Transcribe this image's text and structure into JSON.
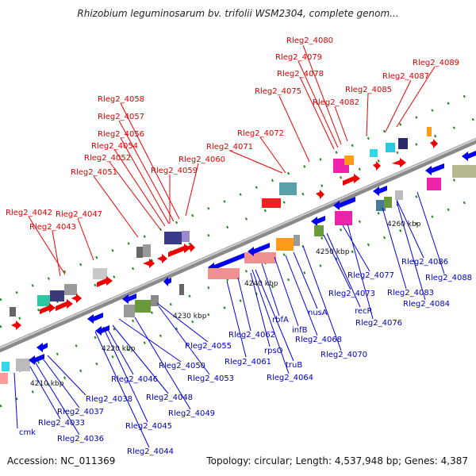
{
  "title": "Rhizobium leguminosarum bv. trifolii WSM2304, complete genom...",
  "accession": "Accession: NC_011369",
  "summary": "Topology: circular; Length: 4,537,948 bp; Genes: 4,387",
  "colors": {
    "top_label": "#dd0000",
    "bottom_label": "#0000bb",
    "backbone": "#8a8a8a"
  },
  "ticks": [
    "4210 kbp",
    "4220 kbp",
    "4230 kbp",
    "4240 kbp",
    "4250 kbp",
    "4260 kbp"
  ],
  "top_labels": [
    "Rleg2_4080",
    "Rleg2_4079",
    "Rleg2_4078",
    "Rleg2_4089",
    "Rleg2_4087",
    "Rleg2_4085",
    "Rleg2_4082",
    "Rleg2_4075",
    "Rleg2_4058",
    "Rleg2_4057",
    "Rleg2_4056",
    "Rleg2_4072",
    "Rleg2_4054",
    "Rleg2_4071",
    "Rleg2_4052",
    "Rleg2_4060",
    "Rleg2_4059",
    "Rleg2_4051",
    "Rleg2_4042",
    "Rleg2_4047",
    "Rleg2_4043"
  ],
  "bottom_labels": [
    "Rleg2_4086",
    "Rleg2_4088",
    "Rleg2_4083",
    "Rleg2_4084",
    "Rleg2_4077",
    "Rleg2_4073",
    "recR",
    "Rleg2_4076",
    "rbfA",
    "nusA",
    "infB",
    "Rleg2_4068",
    "Rleg2_4070",
    "Rleg2_4062",
    "rpsO",
    "Rleg2_4061",
    "truB",
    "Rleg2_4064",
    "Rleg2_4055",
    "Rleg2_4050",
    "Rleg2_4053",
    "Rleg2_4046",
    "Rleg2_4048",
    "Rleg2_4049",
    "Rleg2_4038",
    "Rleg2_4037",
    "Rleg2_4033",
    "Rleg2_4045",
    "cmk",
    "Rleg2_4036",
    "Rleg2_4044"
  ]
}
